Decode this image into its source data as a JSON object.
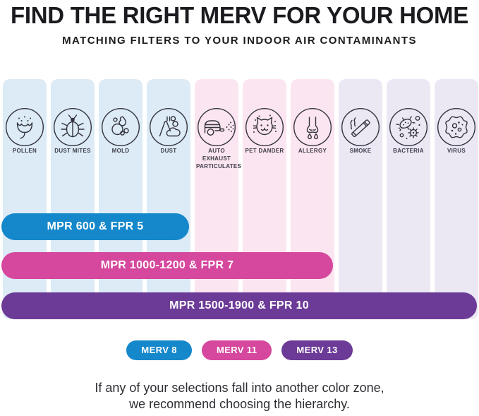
{
  "header": {
    "title": "FIND THE RIGHT MERV FOR YOUR HOME",
    "subtitle": "MATCHING FILTERS TO YOUR INDOOR AIR CONTAMINANTS"
  },
  "zones": {
    "blue": "#dcebf6",
    "pink": "#fbe5f0",
    "lavender": "#ebe8f3"
  },
  "columns": [
    {
      "label": "POLLEN",
      "icon": "pollen-flower-icon",
      "zone": "blue"
    },
    {
      "label": "DUST MITES",
      "icon": "dust-mite-icon",
      "zone": "blue"
    },
    {
      "label": "MOLD",
      "icon": "mold-spores-icon",
      "zone": "blue"
    },
    {
      "label": "DUST",
      "icon": "dust-pile-icon",
      "zone": "blue"
    },
    {
      "label": "AUTO EXHAUST PARTICULATES",
      "icon": "car-exhaust-icon",
      "zone": "pink"
    },
    {
      "label": "PET DANDER",
      "icon": "cat-face-icon",
      "zone": "pink"
    },
    {
      "label": "ALLERGY",
      "icon": "nose-drip-icon",
      "zone": "pink"
    },
    {
      "label": "SMOKE",
      "icon": "cigarette-icon",
      "zone": "lavender"
    },
    {
      "label": "BACTERIA",
      "icon": "bacteria-icon",
      "zone": "lavender"
    },
    {
      "label": "VIRUS",
      "icon": "virus-icon",
      "zone": "lavender"
    }
  ],
  "bars": [
    {
      "label": "MPR 600 & FPR 5",
      "color": "#1588cb",
      "span_columns": 4
    },
    {
      "label": "MPR 1000-1200 & FPR 7",
      "color": "#d6479e",
      "span_columns": 7
    },
    {
      "label": "MPR 1500-1900 & FPR 10",
      "color": "#6c3a97",
      "span_columns": 10
    }
  ],
  "legend": [
    {
      "label": "MERV 8",
      "color": "#1588cb"
    },
    {
      "label": "MERV 11",
      "color": "#d6479e"
    },
    {
      "label": "MERV 13",
      "color": "#6c3a97"
    }
  ],
  "footer": {
    "line1": "If any of your selections fall into another color zone,",
    "line2": "we recommend choosing the hierarchy."
  },
  "chart_data": {
    "type": "bar",
    "title": "FIND THE RIGHT MERV FOR YOUR HOME",
    "subtitle": "MATCHING FILTERS TO YOUR INDOOR AIR CONTAMINANTS",
    "categories": [
      "Pollen",
      "Dust Mites",
      "Mold",
      "Dust",
      "Auto Exhaust Particulates",
      "Pet Dander",
      "Allergy",
      "Smoke",
      "Bacteria",
      "Virus"
    ],
    "category_zones": [
      "blue",
      "blue",
      "blue",
      "blue",
      "pink",
      "pink",
      "pink",
      "lavender",
      "lavender",
      "lavender"
    ],
    "series": [
      {
        "name": "MPR 600 & FPR 5",
        "merv": "MERV 8",
        "color": "#1588cb",
        "covers_categories": [
          "Pollen",
          "Dust Mites",
          "Mold",
          "Dust"
        ]
      },
      {
        "name": "MPR 1000-1200 & FPR 7",
        "merv": "MERV 11",
        "color": "#d6479e",
        "covers_categories": [
          "Pollen",
          "Dust Mites",
          "Mold",
          "Dust",
          "Auto Exhaust Particulates",
          "Pet Dander",
          "Allergy"
        ]
      },
      {
        "name": "MPR 1500-1900 & FPR 10",
        "merv": "MERV 13",
        "color": "#6c3a97",
        "covers_categories": [
          "Pollen",
          "Dust Mites",
          "Mold",
          "Dust",
          "Auto Exhaust Particulates",
          "Pet Dander",
          "Allergy",
          "Smoke",
          "Bacteria",
          "Virus"
        ]
      }
    ],
    "legend_position": "bottom",
    "annotation": "If any of your selections fall into another color zone, we recommend choosing the hierarchy."
  }
}
